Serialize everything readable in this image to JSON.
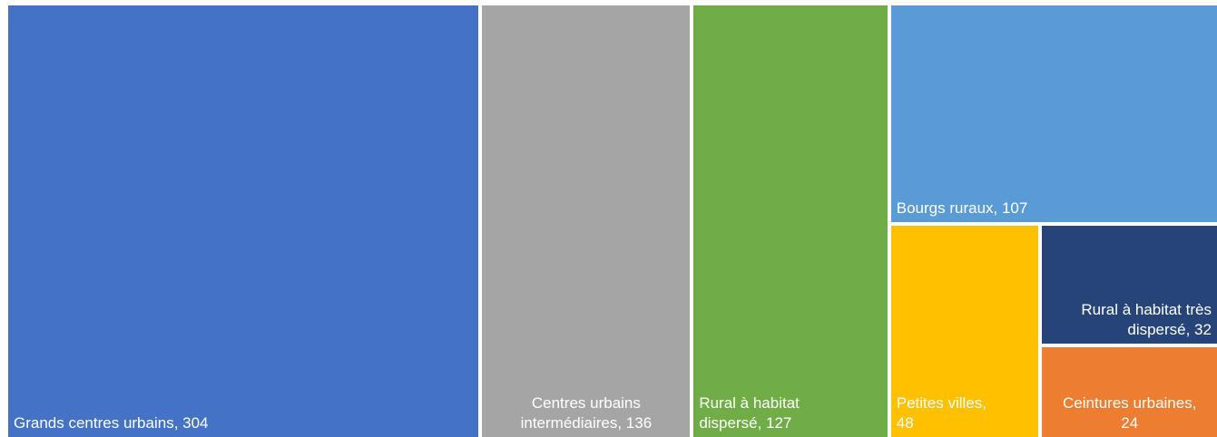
{
  "chart_data": {
    "type": "treemap",
    "title": "",
    "items": [
      {
        "label": "Grands centres urbains",
        "value": 304,
        "display": "Grands centres urbains,   304",
        "color": "#4472C4"
      },
      {
        "label": "Centres urbains intermédiaires",
        "value": 136,
        "display": "Centres urbains\nintermédiaires,   136",
        "color": "#A5A5A5"
      },
      {
        "label": "Rural à habitat dispersé",
        "value": 127,
        "display": "Rural à habitat\ndispersé,   127",
        "color": "#70AD47"
      },
      {
        "label": "Bourgs ruraux",
        "value": 107,
        "display": "Bourgs ruraux,   107",
        "color": "#5B9BD5"
      },
      {
        "label": "Petites villes",
        "value": 48,
        "display": "Petites villes,\n48",
        "color": "#FFC000"
      },
      {
        "label": "Rural à habitat très dispersé",
        "value": 32,
        "display": "Rural à habitat très\ndispersé,   32",
        "color": "#264478"
      },
      {
        "label": "Ceintures urbaines",
        "value": 24,
        "display": "Ceintures urbaines,\n24",
        "color": "#ED7D31"
      }
    ]
  }
}
